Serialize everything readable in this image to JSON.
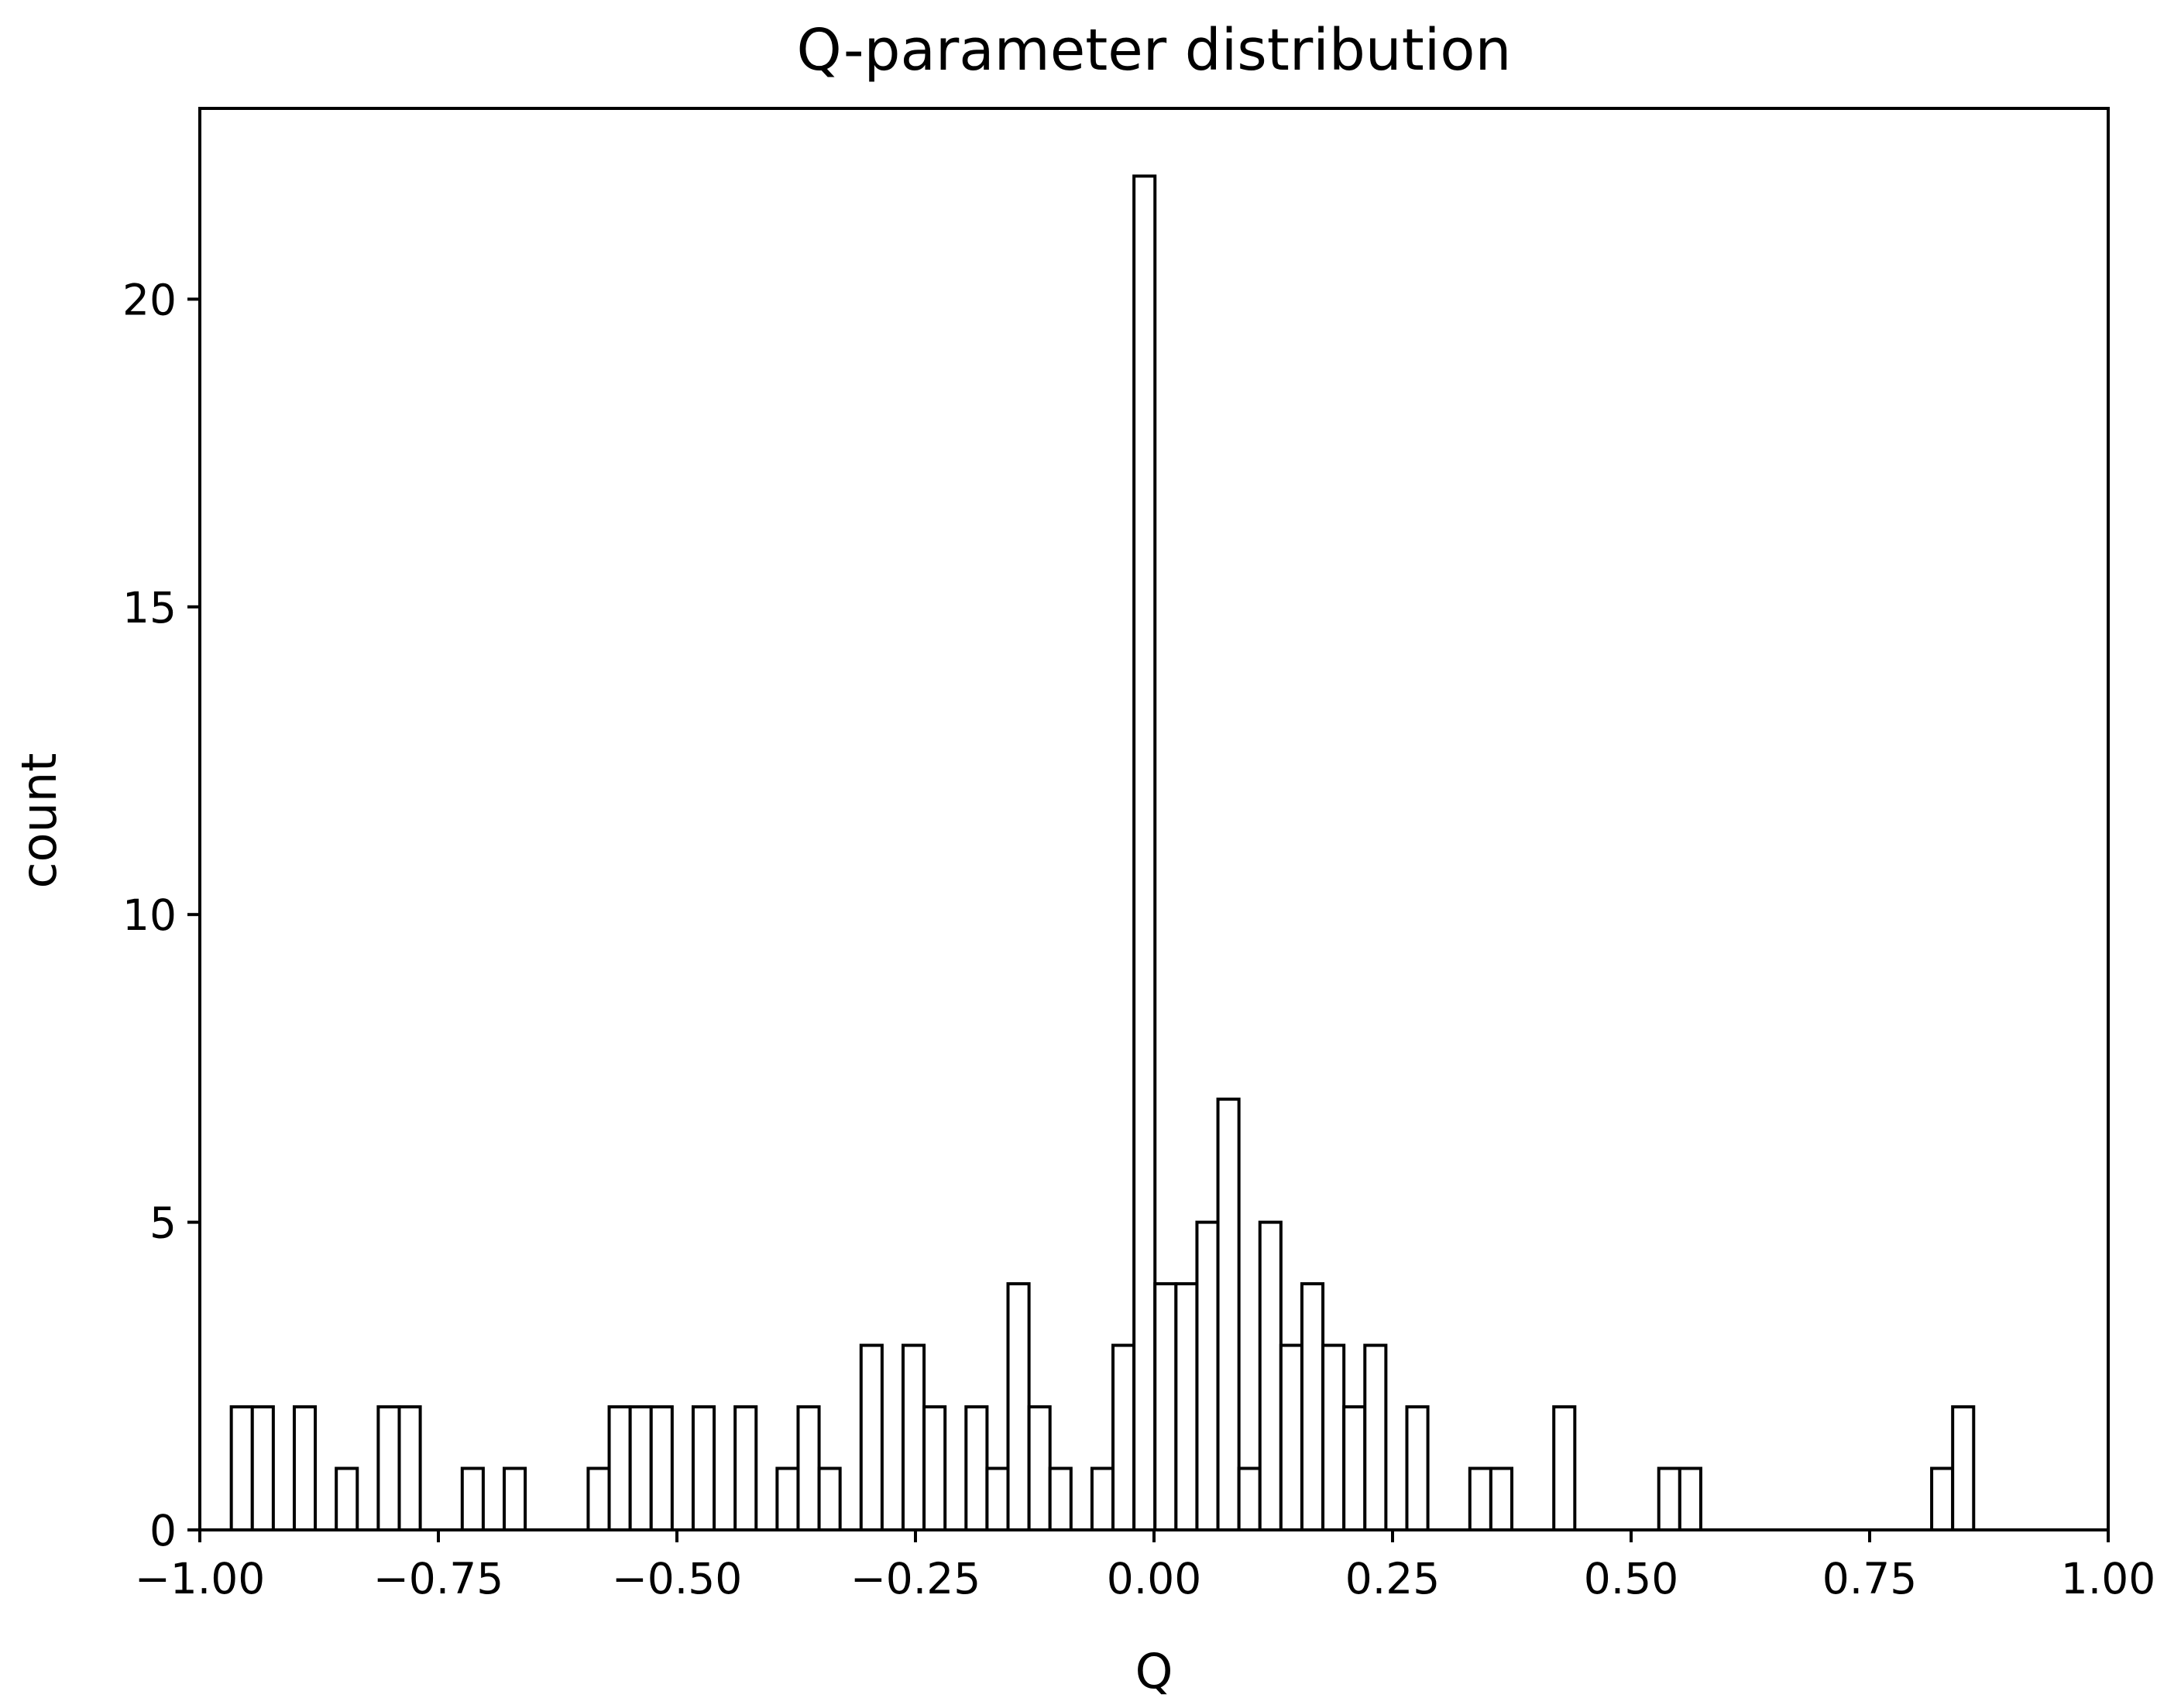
{
  "chart_data": {
    "type": "bar",
    "title": "Q-parameter distribution",
    "xlabel": "Q",
    "ylabel": "count",
    "xlim": [
      -1.0,
      1.0
    ],
    "ylim": [
      0,
      23.1
    ],
    "bin_width": 0.022,
    "xticks": [
      -1.0,
      -0.75,
      -0.5,
      -0.25,
      0.0,
      0.25,
      0.5,
      0.75,
      1.0
    ],
    "xtick_labels": [
      "−1.00",
      "−0.75",
      "−0.50",
      "−0.25",
      "0.00",
      "0.25",
      "0.50",
      "0.75",
      "1.00"
    ],
    "yticks": [
      0,
      5,
      10,
      15,
      20
    ],
    "ytick_labels": [
      "0",
      "5",
      "10",
      "15",
      "20"
    ],
    "grid": false,
    "legend": false,
    "bar_fill": "#ffffff",
    "bar_edge": "#000000",
    "bins": [
      {
        "x": -0.967,
        "count": 2
      },
      {
        "x": -0.945,
        "count": 2
      },
      {
        "x": -0.901,
        "count": 2
      },
      {
        "x": -0.857,
        "count": 1
      },
      {
        "x": -0.813,
        "count": 2
      },
      {
        "x": -0.791,
        "count": 2
      },
      {
        "x": -0.725,
        "count": 1
      },
      {
        "x": -0.681,
        "count": 1
      },
      {
        "x": -0.593,
        "count": 1
      },
      {
        "x": -0.571,
        "count": 2
      },
      {
        "x": -0.549,
        "count": 2
      },
      {
        "x": -0.527,
        "count": 2
      },
      {
        "x": -0.483,
        "count": 2
      },
      {
        "x": -0.439,
        "count": 2
      },
      {
        "x": -0.395,
        "count": 1
      },
      {
        "x": -0.373,
        "count": 2
      },
      {
        "x": -0.351,
        "count": 1
      },
      {
        "x": -0.307,
        "count": 3
      },
      {
        "x": -0.263,
        "count": 3
      },
      {
        "x": -0.241,
        "count": 2
      },
      {
        "x": -0.197,
        "count": 2
      },
      {
        "x": -0.175,
        "count": 1
      },
      {
        "x": -0.153,
        "count": 4
      },
      {
        "x": -0.131,
        "count": 2
      },
      {
        "x": -0.109,
        "count": 1
      },
      {
        "x": -0.065,
        "count": 1
      },
      {
        "x": -0.043,
        "count": 3
      },
      {
        "x": -0.021,
        "count": 22
      },
      {
        "x": 0.001,
        "count": 4
      },
      {
        "x": 0.023,
        "count": 4
      },
      {
        "x": 0.045,
        "count": 5
      },
      {
        "x": 0.067,
        "count": 7
      },
      {
        "x": 0.089,
        "count": 1
      },
      {
        "x": 0.111,
        "count": 5
      },
      {
        "x": 0.133,
        "count": 3
      },
      {
        "x": 0.155,
        "count": 4
      },
      {
        "x": 0.177,
        "count": 3
      },
      {
        "x": 0.199,
        "count": 2
      },
      {
        "x": 0.221,
        "count": 3
      },
      {
        "x": 0.265,
        "count": 2
      },
      {
        "x": 0.331,
        "count": 1
      },
      {
        "x": 0.353,
        "count": 1
      },
      {
        "x": 0.419,
        "count": 2
      },
      {
        "x": 0.529,
        "count": 1
      },
      {
        "x": 0.551,
        "count": 1
      },
      {
        "x": 0.815,
        "count": 1
      },
      {
        "x": 0.837,
        "count": 2
      }
    ]
  }
}
